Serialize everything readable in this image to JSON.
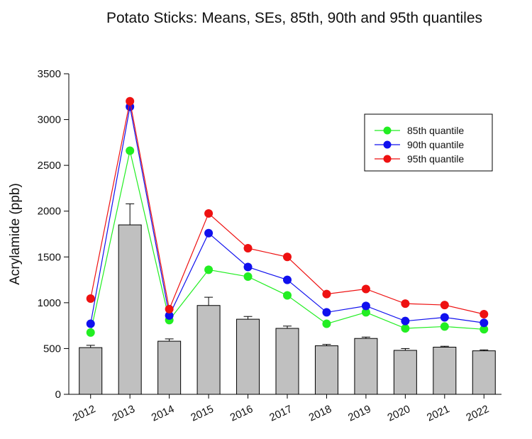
{
  "chart_data": {
    "type": "bar",
    "title": "Potato Sticks: Means, SEs, 85th, 90th and 95th quantiles",
    "xlabel": "",
    "ylabel": "Acrylamide (ppb)",
    "ylim": [
      0,
      3500
    ],
    "yticks": [
      0,
      500,
      1000,
      1500,
      2000,
      2500,
      3000,
      3500
    ],
    "categories": [
      "2012",
      "2013",
      "2014",
      "2015",
      "2016",
      "2017",
      "2018",
      "2019",
      "2020",
      "2021",
      "2022"
    ],
    "means": [
      510,
      1850,
      580,
      970,
      820,
      720,
      530,
      610,
      480,
      515,
      475
    ],
    "se": [
      25,
      230,
      25,
      90,
      30,
      25,
      15,
      15,
      20,
      10,
      10
    ],
    "bar_color": "#c0c0c0",
    "series": [
      {
        "name": "85th quantile",
        "color": "#22ee22",
        "values": [
          675,
          2660,
          810,
          1360,
          1285,
          1080,
          770,
          895,
          720,
          740,
          710
        ]
      },
      {
        "name": "90th quantile",
        "color": "#1010ee",
        "values": [
          770,
          3140,
          860,
          1760,
          1390,
          1250,
          895,
          965,
          800,
          840,
          780
        ]
      },
      {
        "name": "95th quantile",
        "color": "#ee1111",
        "values": [
          1045,
          3200,
          930,
          1975,
          1595,
          1500,
          1095,
          1150,
          990,
          975,
          875
        ]
      }
    ],
    "legend_position": "top-right"
  }
}
